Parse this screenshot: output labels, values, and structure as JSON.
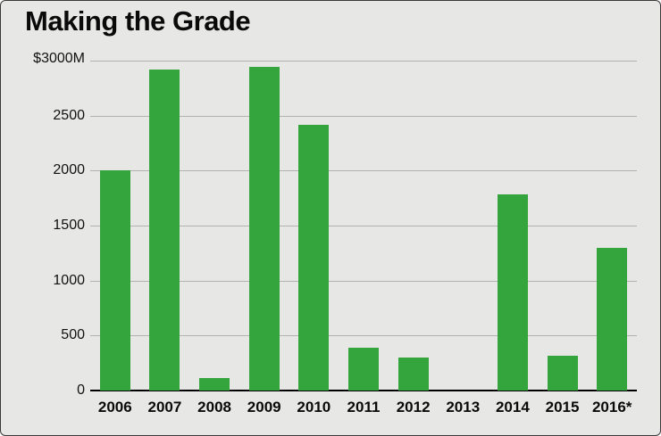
{
  "chart_data": {
    "type": "bar",
    "title": "Making the Grade",
    "y_top_label": "$3000M",
    "categories": [
      "2006",
      "2007",
      "2008",
      "2009",
      "2010",
      "2011",
      "2012",
      "2013",
      "2014",
      "2015",
      "2016*"
    ],
    "values": [
      2000,
      2920,
      110,
      2940,
      2420,
      390,
      300,
      0,
      1780,
      320,
      1300
    ],
    "ylim": [
      0,
      3000
    ],
    "ytick_step": 500,
    "ytick_labels": [
      "0",
      "500",
      "1000",
      "1500",
      "2000",
      "2500"
    ],
    "bar_color": "#34a43d",
    "background_color": "#e7e8e5",
    "grid": true,
    "legend": "none",
    "xlabel": "",
    "ylabel": ""
  }
}
